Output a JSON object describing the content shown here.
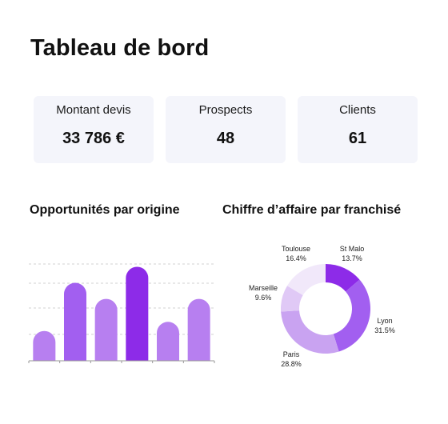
{
  "dashboard": {
    "title": "Tableau de bord"
  },
  "kpis": [
    {
      "label": "Montant devis",
      "value": "33 786 €"
    },
    {
      "label": "Prospects",
      "value": "48"
    },
    {
      "label": "Clients",
      "value": "61"
    }
  ],
  "sections": {
    "opportunities_title": "Opportunités par origine",
    "revenue_title": "Chiffre d’affaire par franchisé"
  },
  "colors": {
    "bar_light": "#b77ff0",
    "bar_mid": "#a25ff0",
    "bar_dark": "#8d2be8"
  },
  "chart_data": [
    {
      "type": "bar",
      "title": "Opportunités par origine",
      "categories": [
        "",
        "",
        "",
        "",
        "",
        ""
      ],
      "values": [
        13,
        34,
        27,
        41,
        17,
        27
      ],
      "ylim": [
        0,
        45
      ],
      "grid": true,
      "legend": "none",
      "colors": [
        "#b77ff0",
        "#a25ff0",
        "#b77ff0",
        "#8d2be8",
        "#b77ff0",
        "#b77ff0"
      ]
    },
    {
      "type": "pie",
      "subtype": "donut",
      "title": "Chiffre d’affaire par franchisé",
      "labels": [
        "St Malo",
        "Lyon",
        "Paris",
        "Marseille",
        "Toulouse"
      ],
      "values": [
        13.7,
        31.5,
        28.8,
        9.6,
        16.4
      ],
      "value_labels": [
        "13.7%",
        "31.5%",
        "28.8%",
        "9.6%",
        "16.4%"
      ],
      "colors": [
        "#8d2be8",
        "#a25ff0",
        "#c9a3f1",
        "#e0c9f6",
        "#f1e8fa"
      ]
    }
  ]
}
